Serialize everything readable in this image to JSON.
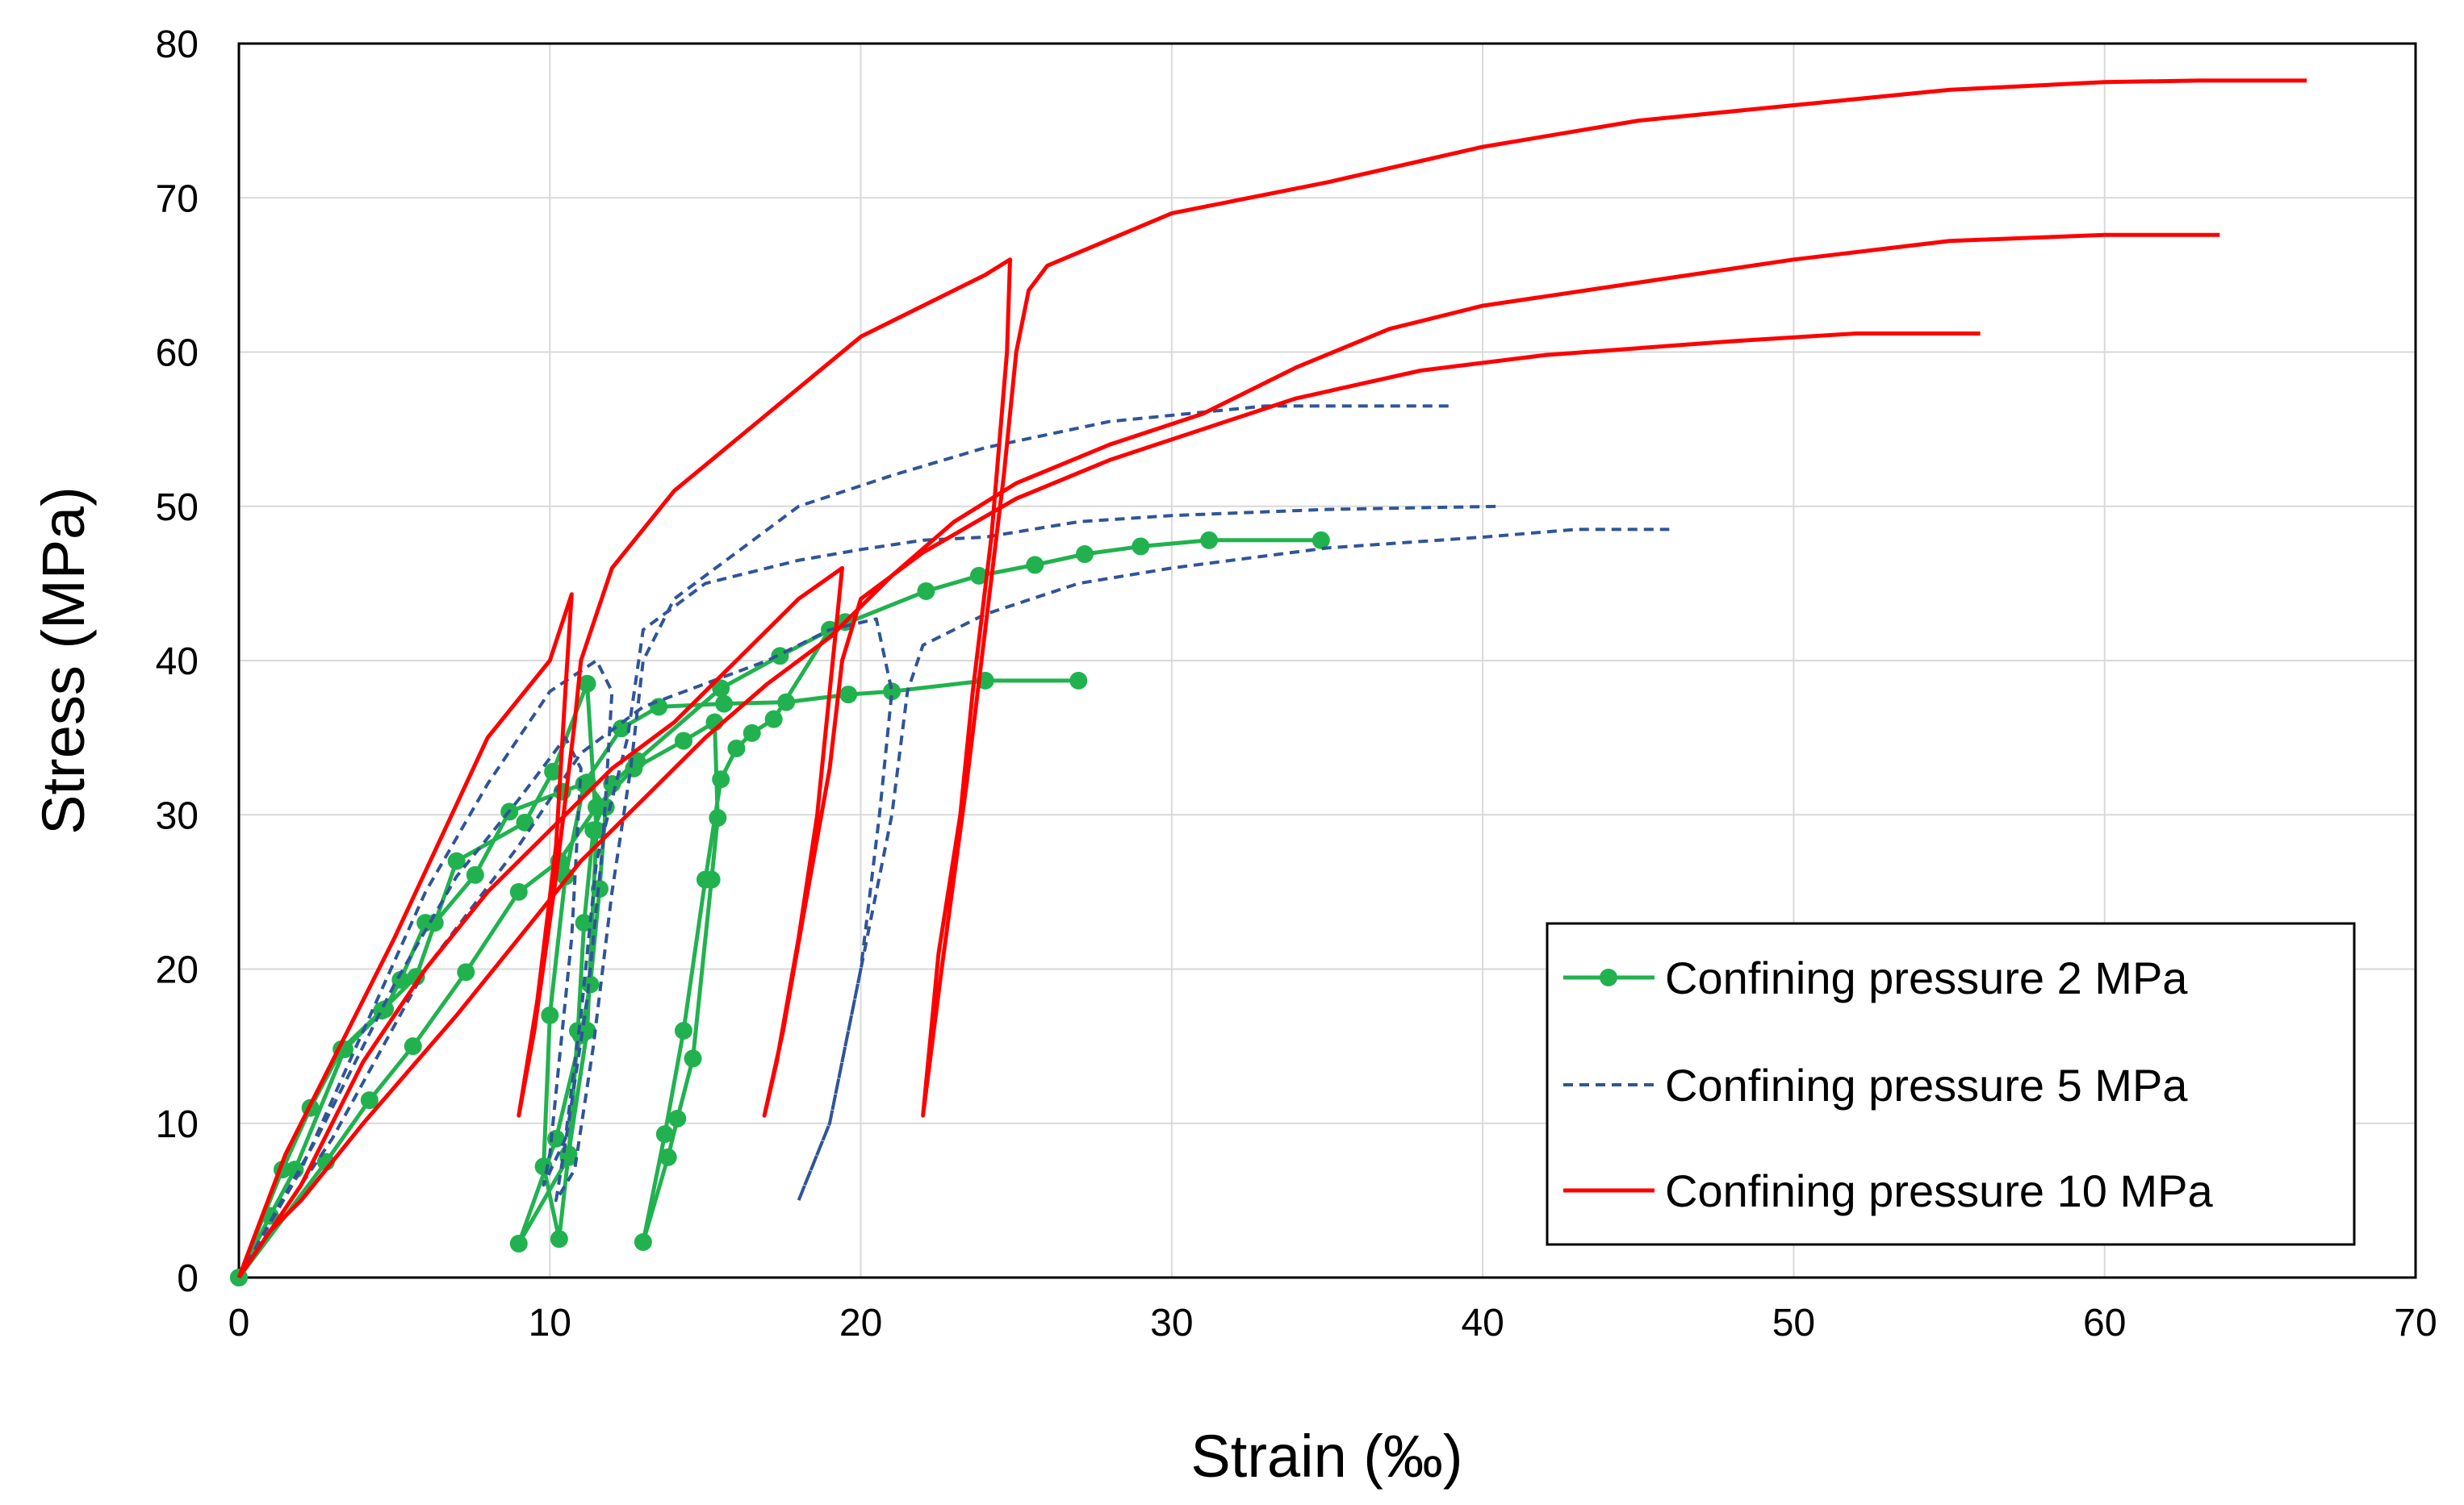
{
  "chart_data": {
    "type": "line",
    "title": "",
    "xlabel": "Strain (‰)",
    "ylabel": "Stress (MPa)",
    "xlim": [
      0,
      70
    ],
    "ylim": [
      0,
      80
    ],
    "xticks": [
      0,
      10,
      20,
      30,
      40,
      50,
      60,
      70
    ],
    "yticks": [
      0,
      10,
      20,
      30,
      40,
      50,
      60,
      70,
      80
    ],
    "xtick_labels": [
      "0",
      "10",
      "20",
      "30",
      "40",
      "50",
      "60",
      "70"
    ],
    "ytick_labels": [
      "0",
      "10",
      "20",
      "30",
      "40",
      "50",
      "60",
      "70",
      "80"
    ],
    "grid": true,
    "legend_position": "bottom-right",
    "series": [
      {
        "name": "Confining pressure 2 MPa",
        "color": "#21b24f",
        "dash": "solid",
        "marker": "circle",
        "points": [
          [
            0,
            0
          ],
          [
            1.4,
            7
          ],
          [
            2.3,
            11
          ],
          [
            3.3,
            14.8
          ],
          [
            4.6,
            17.3
          ],
          [
            5.7,
            19.5
          ],
          [
            7,
            27
          ],
          [
            9.2,
            29.5
          ],
          [
            10.1,
            32.8
          ],
          [
            11.2,
            38.5
          ],
          [
            11.5,
            29
          ],
          [
            11.2,
            16
          ],
          [
            10.6,
            8
          ],
          [
            10.3,
            2.5
          ],
          [
            9.8,
            7.2
          ],
          [
            10,
            17
          ],
          [
            10.5,
            26
          ],
          [
            11.1,
            32
          ],
          [
            12.3,
            35.6
          ],
          [
            13.5,
            37
          ],
          [
            15.6,
            37.2
          ],
          [
            17.6,
            37.3
          ],
          [
            19.6,
            37.8
          ],
          [
            21,
            38
          ],
          [
            24,
            38.7
          ],
          [
            27,
            38.7
          ]
        ],
        "segments": [
          [
            [
              0,
              0
            ],
            [
              2.8,
              7.5
            ],
            [
              4.2,
              11.5
            ],
            [
              5.6,
              15
            ],
            [
              7.3,
              19.8
            ],
            [
              9,
              25
            ],
            [
              10.3,
              27
            ],
            [
              11.5,
              30.5
            ],
            [
              12.7,
              33
            ],
            [
              14.3,
              34.8
            ],
            [
              15.3,
              36
            ],
            [
              15.4,
              29.8
            ],
            [
              15.2,
              25.8
            ],
            [
              14.6,
              14.2
            ],
            [
              14.1,
              10.3
            ],
            [
              13.8,
              7.8
            ],
            [
              13,
              2.3
            ],
            [
              13.7,
              9.3
            ],
            [
              14.3,
              16
            ],
            [
              15,
              25.8
            ],
            [
              15.5,
              32.3
            ],
            [
              16,
              34.3
            ],
            [
              16.5,
              35.3
            ],
            [
              17.2,
              36.2
            ],
            [
              19,
              42
            ],
            [
              22.1,
              44.5
            ],
            [
              23.8,
              45.5
            ],
            [
              25.6,
              46.2
            ],
            [
              27.2,
              46.9
            ],
            [
              29,
              47.4
            ],
            [
              31.2,
              47.8
            ],
            [
              34.8,
              47.8
            ]
          ],
          [
            [
              0,
              0
            ],
            [
              1,
              4
            ],
            [
              1.8,
              7
            ],
            [
              3.4,
              14.8
            ],
            [
              4.7,
              17.4
            ],
            [
              5.2,
              19.3
            ],
            [
              6,
              23
            ],
            [
              6.3,
              23
            ],
            [
              7.6,
              26.1
            ],
            [
              8.7,
              30.2
            ],
            [
              10.4,
              31.5
            ],
            [
              11.2,
              32.1
            ],
            [
              11.8,
              30.5
            ],
            [
              11.6,
              25.2
            ],
            [
              11.3,
              19
            ],
            [
              11,
              15.7
            ],
            [
              10.2,
              9
            ],
            [
              9,
              2.2
            ],
            [
              10.6,
              7.8
            ],
            [
              10.9,
              16
            ],
            [
              11.1,
              23
            ],
            [
              11.4,
              29
            ],
            [
              12,
              32
            ],
            [
              12.8,
              33.5
            ],
            [
              15.5,
              38.2
            ],
            [
              17.4,
              40.3
            ],
            [
              19.5,
              42.5
            ]
          ]
        ]
      },
      {
        "name": "Confining pressure 5 MPa",
        "color": "#2f5597",
        "dash": "dashed",
        "marker": "none",
        "segments": [
          [
            [
              0,
              0
            ],
            [
              2,
              7
            ],
            [
              4,
              16
            ],
            [
              6,
              25
            ],
            [
              8,
              32
            ],
            [
              10,
              38
            ],
            [
              11.5,
              40
            ],
            [
              12,
              38
            ],
            [
              11.7,
              28
            ],
            [
              11.2,
              18
            ],
            [
              10.6,
              10
            ],
            [
              10.2,
              5
            ],
            [
              10.8,
              7
            ],
            [
              11.4,
              15
            ],
            [
              12,
              25
            ],
            [
              12.6,
              33
            ],
            [
              13,
              40
            ],
            [
              14,
              44
            ],
            [
              16,
              47
            ],
            [
              18,
              50
            ],
            [
              21,
              52
            ],
            [
              24,
              53.8
            ],
            [
              28,
              55.5
            ],
            [
              33,
              56.5
            ],
            [
              39,
              56.5
            ]
          ],
          [
            [
              0,
              0
            ],
            [
              2.5,
              9
            ],
            [
              5,
              19
            ],
            [
              7,
              26
            ],
            [
              9,
              31
            ],
            [
              10.5,
              35
            ],
            [
              11,
              33
            ],
            [
              10.7,
              22
            ],
            [
              10.3,
              14
            ],
            [
              10,
              8
            ],
            [
              9.8,
              6
            ],
            [
              10.5,
              9
            ],
            [
              11,
              17
            ],
            [
              11.5,
              27
            ],
            [
              12.5,
              35
            ],
            [
              13,
              42
            ],
            [
              15,
              45
            ],
            [
              18,
              46.5
            ],
            [
              20,
              47.2
            ],
            [
              22,
              47.8
            ],
            [
              24,
              48
            ],
            [
              27,
              49
            ],
            [
              30,
              49.4
            ],
            [
              35,
              49.8
            ],
            [
              40.5,
              50
            ]
          ],
          [
            [
              0,
              0
            ],
            [
              3,
              9
            ],
            [
              6,
              20
            ],
            [
              9,
              28
            ],
            [
              11,
              34
            ],
            [
              13,
              37
            ],
            [
              15,
              38.5
            ],
            [
              17,
              40
            ],
            [
              19,
              42
            ],
            [
              20.5,
              42.7
            ],
            [
              21,
              38
            ],
            [
              20.6,
              30
            ],
            [
              20,
              20
            ],
            [
              19,
              10
            ],
            [
              18,
              5
            ],
            [
              19,
              10
            ],
            [
              20,
              20
            ],
            [
              21,
              30
            ],
            [
              21.5,
              38
            ],
            [
              22,
              41
            ],
            [
              24,
              43
            ],
            [
              27,
              45
            ],
            [
              30,
              46
            ],
            [
              35,
              47.3
            ],
            [
              40,
              48
            ],
            [
              43,
              48.5
            ],
            [
              46,
              48.5
            ]
          ]
        ]
      },
      {
        "name": "Confining pressure 10 MPa",
        "color": "#ff0000",
        "dash": "solid",
        "marker": "none",
        "segments": [
          [
            [
              0,
              0
            ],
            [
              1.5,
              8
            ],
            [
              3,
              14
            ],
            [
              5,
              22
            ],
            [
              8,
              35
            ],
            [
              10,
              40
            ],
            [
              10.7,
              44.3
            ],
            [
              10.5,
              38
            ],
            [
              10.2,
              28
            ],
            [
              9.6,
              18
            ],
            [
              9,
              10.5
            ],
            [
              9.5,
              16
            ],
            [
              10.2,
              26
            ],
            [
              10.8,
              36
            ],
            [
              11,
              40
            ],
            [
              12,
              46
            ],
            [
              14,
              51
            ],
            [
              17,
              56
            ],
            [
              20,
              61
            ],
            [
              22,
              63
            ],
            [
              24,
              65
            ],
            [
              24.8,
              66
            ],
            [
              24.7,
              60
            ],
            [
              24.2,
              48
            ],
            [
              23.6,
              38
            ],
            [
              23.2,
              30
            ],
            [
              22.5,
              21
            ],
            [
              22,
              10.5
            ],
            [
              22.6,
              20
            ],
            [
              23.4,
              32
            ],
            [
              24,
              42
            ],
            [
              24.6,
              52
            ],
            [
              25,
              60
            ],
            [
              25.4,
              64
            ],
            [
              26,
              65.6
            ],
            [
              30,
              69
            ],
            [
              35,
              71
            ],
            [
              40,
              73.3
            ],
            [
              45,
              75
            ],
            [
              50,
              76
            ],
            [
              55,
              77
            ],
            [
              60,
              77.5
            ],
            [
              63,
              77.6
            ],
            [
              66.5,
              77.6
            ]
          ],
          [
            [
              0,
              0
            ],
            [
              2,
              6
            ],
            [
              4,
              14
            ],
            [
              6,
              20
            ],
            [
              8,
              25
            ],
            [
              10,
              29
            ],
            [
              12,
              33
            ],
            [
              14,
              36
            ],
            [
              16,
              40
            ],
            [
              18,
              44
            ],
            [
              19.4,
              46
            ],
            [
              19.1,
              40
            ],
            [
              18.6,
              30
            ],
            [
              18,
              22
            ],
            [
              17.3,
              14
            ],
            [
              16.9,
              10.5
            ],
            [
              17.5,
              16
            ],
            [
              18.2,
              24
            ],
            [
              19,
              33
            ],
            [
              19.4,
              40
            ],
            [
              20,
              44
            ],
            [
              22,
              47
            ],
            [
              25,
              50.5
            ],
            [
              28,
              53
            ],
            [
              31,
              55
            ],
            [
              34,
              57
            ],
            [
              38,
              58.8
            ],
            [
              42,
              59.8
            ],
            [
              48,
              60.7
            ],
            [
              52,
              61.2
            ],
            [
              56,
              61.2
            ]
          ],
          [
            [
              0,
              0
            ],
            [
              1,
              3
            ],
            [
              2,
              5
            ],
            [
              4,
              10
            ],
            [
              7,
              17
            ],
            [
              9,
              22
            ],
            [
              11,
              27
            ],
            [
              13,
              31
            ],
            [
              15,
              35
            ],
            [
              17,
              38.5
            ],
            [
              19,
              41.5
            ],
            [
              21,
              45.5
            ],
            [
              23,
              49
            ],
            [
              25,
              51.5
            ],
            [
              28,
              54
            ],
            [
              31,
              56
            ],
            [
              34,
              59
            ],
            [
              37,
              61.5
            ],
            [
              40,
              63
            ],
            [
              45,
              64.5
            ],
            [
              50,
              66
            ],
            [
              55,
              67.2
            ],
            [
              60,
              67.6
            ],
            [
              63.7,
              67.6
            ]
          ]
        ]
      }
    ]
  }
}
